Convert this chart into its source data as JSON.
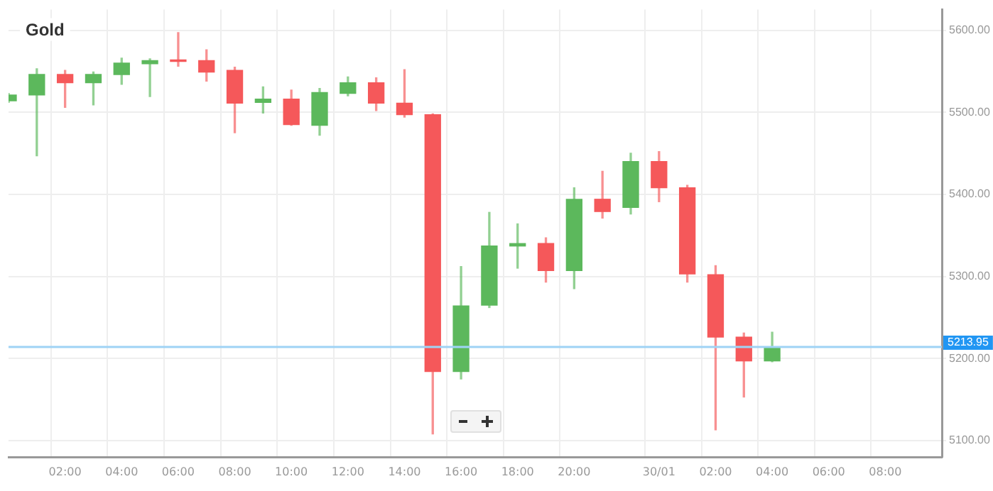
{
  "chart_data": {
    "type": "candlestick",
    "title": "Gold",
    "categories": [
      null,
      null,
      "02:00",
      null,
      "04:00",
      null,
      "06:00",
      null,
      "08:00",
      null,
      "10:00",
      null,
      "12:00",
      null,
      "14:00",
      null,
      "16:00",
      null,
      "18:00",
      null,
      "20:00",
      null,
      null,
      "30/01",
      null,
      "02:00",
      null,
      "04:00",
      null,
      "06:00",
      null,
      "08:00",
      null,
      null
    ],
    "ohlc": [
      [
        5514,
        5523,
        5512,
        5521
      ],
      [
        5521,
        5553,
        5447,
        5546
      ],
      [
        5546,
        5551,
        5506,
        5536
      ],
      [
        5536,
        5549,
        5509,
        5546
      ],
      [
        5546,
        5566,
        5534,
        5560
      ],
      [
        5559,
        5565,
        5519,
        5563
      ],
      [
        5563,
        5597,
        5556,
        5562
      ],
      [
        5563,
        5576,
        5538,
        5549
      ],
      [
        5551,
        5555,
        5475,
        5511
      ],
      [
        5512,
        5531,
        5499,
        5516
      ],
      [
        5516,
        5527,
        5484,
        5485
      ],
      [
        5484,
        5529,
        5472,
        5524
      ],
      [
        5523,
        5543,
        5520,
        5536
      ],
      [
        5536,
        5542,
        5502,
        5511
      ],
      [
        5511,
        5552,
        5494,
        5497
      ],
      [
        5497,
        5498,
        5108,
        5184
      ],
      [
        5184,
        5312,
        5175,
        5264
      ],
      [
        5265,
        5378,
        5262,
        5337
      ],
      [
        5337,
        5364,
        5310,
        5340
      ],
      [
        5340,
        5347,
        5293,
        5307
      ],
      [
        5307,
        5408,
        5285,
        5394
      ],
      [
        5394,
        5428,
        5371,
        5379
      ],
      [
        5384,
        5450,
        5376,
        5440
      ],
      [
        5440,
        5452,
        5391,
        5408
      ],
      [
        5408,
        5411,
        5293,
        5303
      ],
      [
        5302,
        5313,
        5113,
        5226
      ],
      [
        5226,
        5231,
        5153,
        5197
      ],
      [
        5197,
        5232,
        5196,
        5214
      ],
      null,
      null,
      null,
      null,
      null,
      null
    ],
    "colors": [
      "#5cb85c",
      "#5cb85c",
      "#f5585a",
      "#5cb85c",
      "#5cb85c",
      "#5cb85c",
      "#f5585a",
      "#f5585a",
      "#f5585a",
      "#5cb85c",
      "#f5585a",
      "#5cb85c",
      "#5cb85c",
      "#f5585a",
      "#f5585a",
      "#f5585a",
      "#5cb85c",
      "#5cb85c",
      "#5cb85c",
      "#f5585a",
      "#5cb85c",
      "#f5585a",
      "#5cb85c",
      "#f5585a",
      "#f5585a",
      "#f5585a",
      "#f5585a",
      "#5cb85c",
      null,
      null,
      null,
      null,
      null,
      null
    ],
    "ylim": [
      5080,
      5625
    ],
    "yticks": [
      {
        "value": 5100,
        "label": "5100.00"
      },
      {
        "value": 5200,
        "label": "5200.00"
      },
      {
        "value": 5300,
        "label": "5300.00"
      },
      {
        "value": 5400,
        "label": "5400.00"
      },
      {
        "value": 5500,
        "label": "5500.00"
      },
      {
        "value": 5600,
        "label": "5600.00"
      }
    ],
    "ref_lines": [
      {
        "axis": "y",
        "value": 5213.95,
        "label": "5213.95",
        "color": "#9fd3f5"
      }
    ],
    "grid": true
  }
}
